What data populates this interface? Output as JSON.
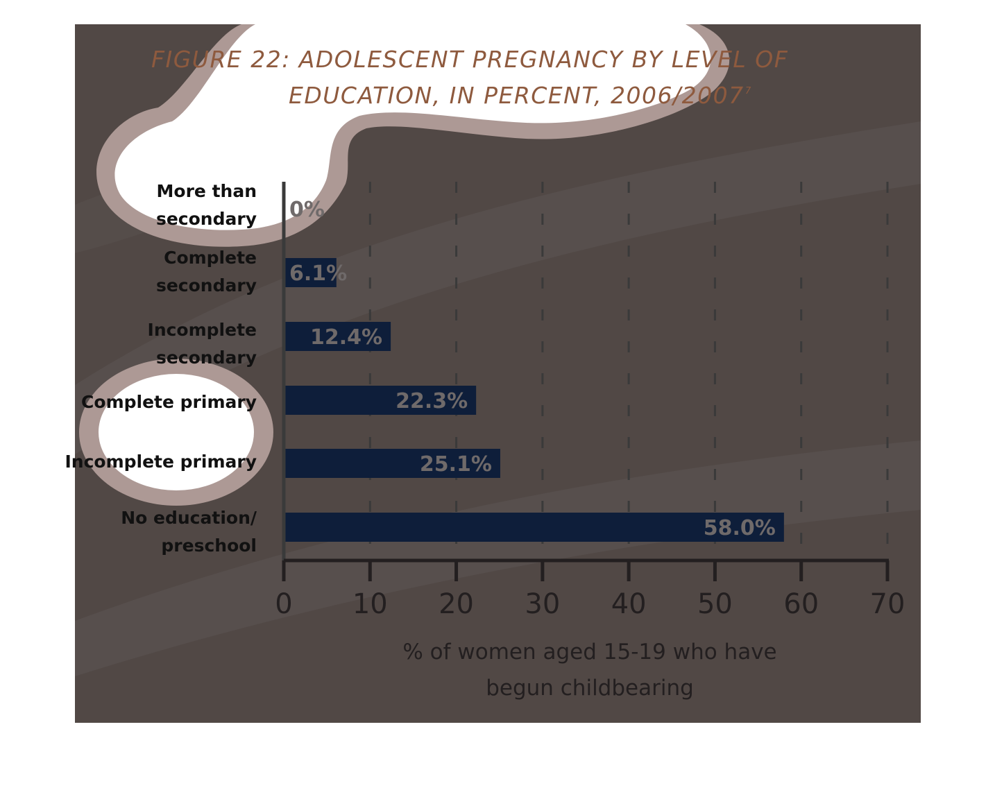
{
  "chart_data": {
    "type": "bar",
    "orientation": "horizontal",
    "title_lines": [
      "FIGURE 22: ADOLESCENT PREGNANCY BY LEVEL OF",
      "EDUCATION, IN PERCENT, 2006/2007"
    ],
    "title_reference": "7",
    "categories": [
      [
        "More than",
        "secondary"
      ],
      [
        "Complete",
        "secondary"
      ],
      [
        "Incomplete",
        "secondary"
      ],
      [
        "Complete primary"
      ],
      [
        "Incomplete primary"
      ],
      [
        "No education/",
        "preschool"
      ]
    ],
    "values": [
      0,
      6.1,
      12.4,
      22.3,
      25.1,
      58.0
    ],
    "data_labels": [
      "0%",
      "6.1%",
      "12.4%",
      "22.3%",
      "25.1%",
      "58.0%"
    ],
    "xlabel_lines": [
      "% of women aged 15-19 who have",
      "begun childbearing"
    ],
    "xlim": [
      0,
      70
    ],
    "xticks": [
      "0",
      "10",
      "20",
      "30",
      "40",
      "50",
      "60",
      "70"
    ],
    "grid": "vertical dashed",
    "colors": {
      "bar": "#0e1e3a",
      "data_label": "#6f6a6a",
      "title": "#8e5a3e",
      "background": "#514845",
      "axis": "#231f20"
    }
  }
}
